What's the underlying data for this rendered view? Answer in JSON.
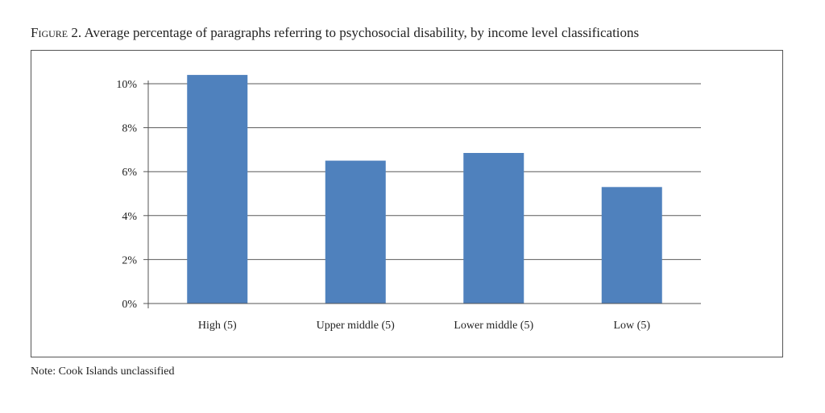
{
  "figure": {
    "label": "Figure 2.",
    "caption": "Average percentage of paragraphs referring to psychosocial disability, by income level classifications"
  },
  "note": "Note: Cook Islands unclassified",
  "chart_data": {
    "type": "bar",
    "categories": [
      "High (5)",
      "Upper middle (5)",
      "Lower middle (5)",
      "Low (5)"
    ],
    "values": [
      10.4,
      6.5,
      6.85,
      5.3
    ],
    "value_unit": "%",
    "ylim": [
      0,
      10
    ],
    "yticks": [
      0,
      2,
      4,
      6,
      8,
      10
    ],
    "ytick_labels": [
      "0%",
      "2%",
      "4%",
      "6%",
      "8%",
      "10%"
    ],
    "grid": true,
    "legend": "none",
    "bar_color": "#4f81bd",
    "gridline_color": "#5a5a5a"
  }
}
